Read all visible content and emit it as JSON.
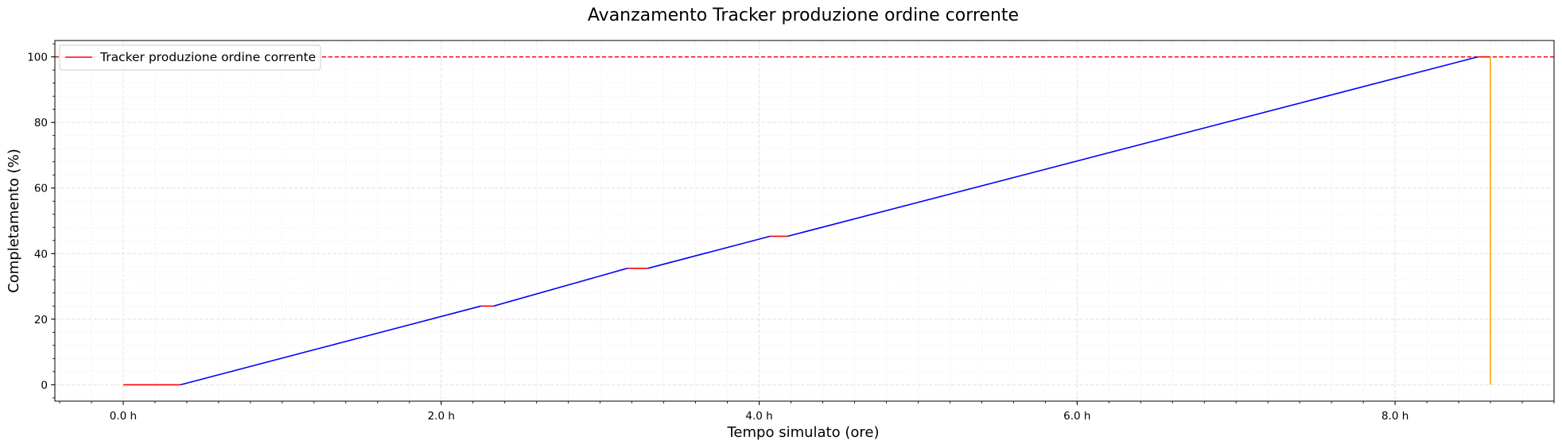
{
  "chart_data": {
    "type": "line",
    "title": "Avanzamento Tracker produzione ordine corrente",
    "xlabel": "Tempo simulato (ore)",
    "ylabel": "Completamento (%)",
    "xlim": [
      -0.43,
      9.0
    ],
    "ylim": [
      -5,
      105
    ],
    "x_ticks": [
      0,
      2,
      4,
      6,
      8
    ],
    "x_tick_labels": [
      "0.0 h",
      "2.0 h",
      "4.0 h",
      "6.0 h",
      "8.0 h"
    ],
    "y_ticks": [
      0,
      20,
      40,
      60,
      80,
      100
    ],
    "y_tick_labels": [
      "0",
      "20",
      "40",
      "60",
      "80",
      "100"
    ],
    "grid": true,
    "legend": {
      "placement": "upper-left",
      "entries": [
        "Tracker produzione ordine corrente"
      ]
    },
    "reference_line": {
      "y": 100,
      "color": "#ff0000",
      "style": "dashed"
    },
    "series": [
      {
        "name": "Tracker produzione ordine corrente",
        "color": "#ff0000",
        "segments": [
          {
            "x": [
              0.0,
              0.36
            ],
            "y": [
              0,
              0
            ]
          },
          {
            "x": [
              2.25,
              2.33
            ],
            "y": [
              24,
              24
            ]
          },
          {
            "x": [
              3.17,
              3.3
            ],
            "y": [
              35.5,
              35.5
            ]
          },
          {
            "x": [
              4.07,
              4.18
            ],
            "y": [
              45.3,
              45.3
            ]
          },
          {
            "x": [
              8.52,
              8.6
            ],
            "y": [
              100,
              100
            ]
          }
        ]
      },
      {
        "color": "#0000ff",
        "segments": [
          {
            "x": [
              0.36,
              2.25
            ],
            "y": [
              0,
              24
            ]
          },
          {
            "x": [
              2.33,
              3.17
            ],
            "y": [
              24,
              35.5
            ]
          },
          {
            "x": [
              3.3,
              4.07
            ],
            "y": [
              35.5,
              45.3
            ]
          },
          {
            "x": [
              4.18,
              8.52
            ],
            "y": [
              45.3,
              100
            ]
          }
        ]
      },
      {
        "color": "#ffa500",
        "segments": [
          {
            "x": [
              8.6,
              8.6
            ],
            "y": [
              100,
              0
            ]
          }
        ]
      }
    ]
  }
}
